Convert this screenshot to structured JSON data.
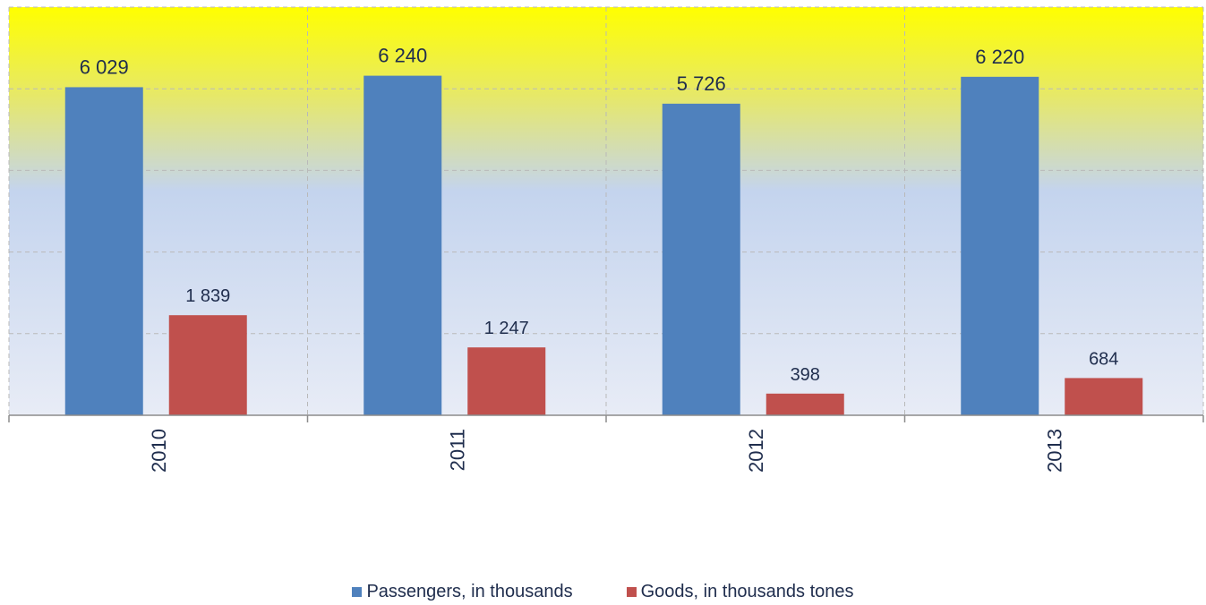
{
  "chart_data": {
    "type": "bar",
    "categories": [
      "2010",
      "2011",
      "2012",
      "2013"
    ],
    "series": [
      {
        "name": "Passengers, in thousands",
        "values": [
          6029,
          6240,
          5726,
          6220
        ],
        "labels": [
          "6 029",
          "6 240",
          "5 726",
          "6 220"
        ],
        "color": "#4f81bd"
      },
      {
        "name": "Goods, in thousands tones",
        "values": [
          1839,
          1247,
          398,
          684
        ],
        "labels": [
          "1 839",
          "1 247",
          "398",
          "684"
        ],
        "color": "#c0504d"
      }
    ],
    "ylim": [
      0,
      7500
    ],
    "grid": true,
    "legend_position": "bottom",
    "colors": {
      "text": "#1f2d4d",
      "grid": "#b9b9b9",
      "axis": "#8c8c8c",
      "background_top": "#ffff00",
      "background_bottom": "#e8ecf6"
    }
  }
}
